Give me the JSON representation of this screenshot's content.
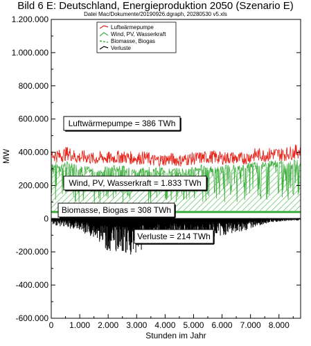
{
  "chart_data": {
    "type": "area",
    "title": "Bild 6 E: Deutschland, Energieproduktion 2050 (Szenario E)",
    "subtitle": "Datei Mac/Dokumente/20190926.dgraph, 20280530 v5.xls",
    "xlabel": "Stunden im Jahr",
    "ylabel": "MW",
    "xlim": [
      0,
      8760
    ],
    "ylim": [
      -600000,
      1200000
    ],
    "x_ticks": [
      0,
      1000,
      2000,
      3000,
      4000,
      5000,
      6000,
      7000,
      8000
    ],
    "x_tick_labels": [
      "0",
      "1.000",
      "2.000",
      "3.000",
      "4.000",
      "5.000",
      "6.000",
      "7.000",
      "8.000"
    ],
    "y_ticks": [
      -600000,
      -400000,
      -200000,
      0,
      200000,
      400000,
      600000,
      800000,
      1000000,
      1200000
    ],
    "y_tick_labels": [
      "-600.000",
      "-400.000",
      "-200.000",
      "0",
      "200.000",
      "400.000",
      "600.000",
      "800.000",
      "1.000.000",
      "1.200.000"
    ],
    "legend_position": "top-center",
    "series": [
      {
        "name": "Luftwärmepumpe",
        "color": "#e8261c",
        "style": "line",
        "x": [
          0,
          300,
          600,
          900,
          1200,
          1500,
          1800,
          2100,
          2400,
          2700,
          3000,
          3300,
          3600,
          3900,
          4200,
          4500,
          4800,
          5100,
          5400,
          5700,
          6000,
          6300,
          6600,
          6900,
          7200,
          7500,
          7800,
          8100,
          8400,
          8760
        ],
        "values": [
          420000,
          410000,
          430000,
          400000,
          405000,
          390000,
          400000,
          395000,
          405000,
          400000,
          395000,
          400000,
          380000,
          385000,
          390000,
          380000,
          390000,
          395000,
          400000,
          405000,
          395000,
          400000,
          390000,
          400000,
          420000,
          415000,
          425000,
          420000,
          430000,
          445000
        ]
      },
      {
        "name": "Wind, PV, Wasserkraft",
        "color": "#3cae3c",
        "style": "hatched-area",
        "x": [
          0,
          300,
          600,
          900,
          1200,
          1500,
          1800,
          2100,
          2400,
          2700,
          3000,
          3300,
          3600,
          3900,
          4200,
          4500,
          4800,
          5100,
          5400,
          5700,
          6000,
          6300,
          6600,
          6900,
          7200,
          7500,
          7800,
          8100,
          8400,
          8760
        ],
        "values": [
          350000,
          340000,
          345000,
          330000,
          320000,
          300000,
          310000,
          320000,
          330000,
          310000,
          300000,
          320000,
          310000,
          315000,
          300000,
          310000,
          300000,
          320000,
          330000,
          310000,
          320000,
          330000,
          320000,
          340000,
          350000,
          345000,
          355000,
          350000,
          360000,
          360000
        ]
      },
      {
        "name": "Biomasse, Biogas",
        "color": "#3cae3c",
        "style": "dashed",
        "x": [
          0,
          8760
        ],
        "values": [
          40000,
          40000
        ]
      },
      {
        "name": "Verluste",
        "color": "#000000",
        "style": "line",
        "x": [
          0,
          300,
          600,
          900,
          1200,
          1500,
          1800,
          2100,
          2400,
          2700,
          3000,
          3300,
          3600,
          3900,
          4200,
          4500,
          4800,
          5100,
          5400,
          5700,
          6000,
          6300,
          6600,
          6900,
          7200,
          7500,
          7800,
          8100,
          8400,
          8760
        ],
        "values": [
          -30000,
          -40000,
          -50000,
          -60000,
          -80000,
          -100000,
          -140000,
          -190000,
          -160000,
          -200000,
          -180000,
          -150000,
          -130000,
          -120000,
          -110000,
          -100000,
          -120000,
          -130000,
          -110000,
          -100000,
          -90000,
          -80000,
          -70000,
          -60000,
          -40000,
          -30000,
          -20000,
          -15000,
          -10000,
          -10000
        ]
      }
    ],
    "annotations": [
      {
        "text": "Luftwärmepumpe = 386 TWh"
      },
      {
        "text": "Wind, PV, Wasserkraft = 1.833  TWh"
      },
      {
        "text": "Biomasse, Biogas = 308 TWh"
      },
      {
        "text": "Verluste = 214 TWh"
      }
    ],
    "grid": false
  }
}
